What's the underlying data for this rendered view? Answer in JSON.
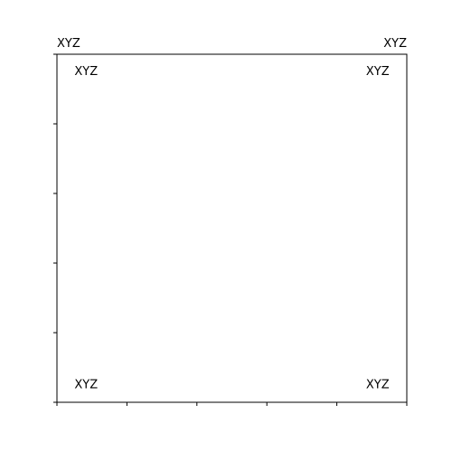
{
  "chart_data": {
    "type": "scatter",
    "title": "",
    "xlabel": "",
    "ylabel": "",
    "xlim": [
      0,
      1
    ],
    "ylim": [
      0,
      1
    ],
    "grid": false,
    "x_ticks": [
      0,
      0.2,
      0.4,
      0.6,
      0.8,
      1.0
    ],
    "y_ticks": [
      0,
      0.2,
      0.4,
      0.6,
      0.8,
      1.0
    ],
    "tick_labels_visible": false,
    "corner_titles": {
      "left": "XYZ",
      "right": "XYZ"
    },
    "annotations": [
      {
        "text": "XYZ",
        "x": 0.05,
        "y": 0.95,
        "ha": "left"
      },
      {
        "text": "XYZ",
        "x": 0.95,
        "y": 0.95,
        "ha": "right"
      },
      {
        "text": "XYZ",
        "x": 0.05,
        "y": 0.05,
        "ha": "left"
      },
      {
        "text": "XYZ",
        "x": 0.95,
        "y": 0.05,
        "ha": "right"
      }
    ]
  }
}
